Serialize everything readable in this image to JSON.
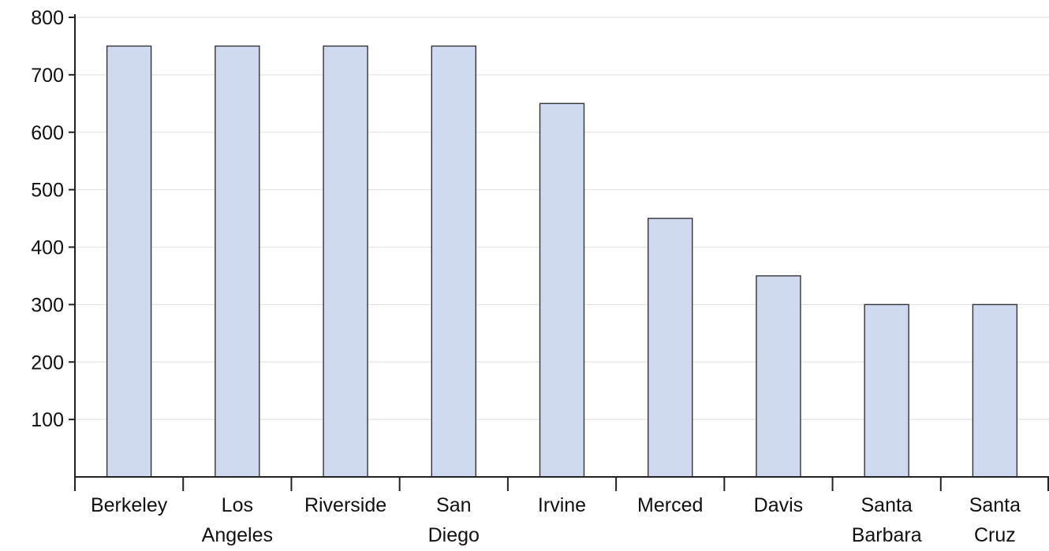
{
  "chart_data": {
    "type": "bar",
    "categories": [
      [
        "Berkeley"
      ],
      [
        "Los",
        "Angeles"
      ],
      [
        "Riverside"
      ],
      [
        "San",
        "Diego"
      ],
      [
        "Irvine"
      ],
      [
        "Merced"
      ],
      [
        "Davis"
      ],
      [
        "Santa",
        "Barbara"
      ],
      [
        "Santa",
        "Cruz"
      ]
    ],
    "values": [
      750,
      750,
      750,
      750,
      650,
      450,
      350,
      300,
      300
    ],
    "y_ticks": [
      "100",
      "200",
      "300",
      "400",
      "500",
      "600",
      "700",
      "800"
    ],
    "ylim": [
      0,
      800
    ],
    "grid": true,
    "colors": {
      "bar_fill": "#cfdaf1",
      "bar_stroke": "#333333",
      "axis": "#222222",
      "grid": "#e6e6e6",
      "text": "#111111"
    }
  }
}
